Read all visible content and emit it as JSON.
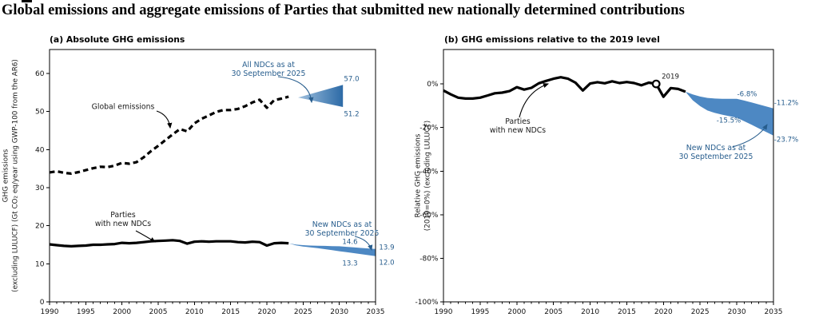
{
  "page": {
    "title": "Global emissions and aggregate emissions of Parties that submitted new nationally determined contributions"
  },
  "colors": {
    "line_black": "#000000",
    "band_blue": "#4d88c3",
    "wedge_gradient_start": "#9fc0de",
    "wedge_gradient_end": "#2c6aa6",
    "annotation_blue": "#275d8d",
    "marker_fill": "#ffffff"
  },
  "chart_data": [
    {
      "id": "a",
      "type": "line",
      "subtitle": "(a) Absolute GHG emissions",
      "ylabel": [
        "GHG emissions",
        "(excluding LULUCF) (Gt CO₂ eq/year using GWP-100 from the AR6)"
      ],
      "xlim": [
        1990,
        2035
      ],
      "ylim": [
        0,
        66.3
      ],
      "grid": false,
      "xticks": [
        1990,
        1995,
        2000,
        2005,
        2010,
        2015,
        2020,
        2025,
        2030,
        2035
      ],
      "xtick_labels": [
        "1990",
        "1995",
        "2000",
        "2005",
        "2010",
        "2015",
        "2020",
        "2025",
        "2030",
        "2035"
      ],
      "yticks": [
        0,
        10,
        20,
        30,
        40,
        50,
        60
      ],
      "ytick_labels": [
        "0",
        "10",
        "20",
        "30",
        "40",
        "50",
        "60"
      ],
      "series": [
        {
          "name": "Global emissions",
          "style": "dashed",
          "x": [
            1990,
            1991,
            1992,
            1993,
            1994,
            1995,
            1996,
            1997,
            1998,
            1999,
            2000,
            2001,
            2002,
            2003,
            2004,
            2005,
            2006,
            2007,
            2008,
            2009,
            2010,
            2011,
            2012,
            2013,
            2014,
            2015,
            2016,
            2017,
            2018,
            2019,
            2020,
            2021,
            2022,
            2023
          ],
          "y": [
            34.0,
            34.3,
            33.9,
            33.7,
            34.1,
            34.6,
            35.1,
            35.5,
            35.4,
            35.8,
            36.5,
            36.3,
            36.7,
            38.0,
            39.6,
            41.0,
            42.5,
            44.0,
            45.4,
            44.8,
            46.9,
            48.1,
            49.0,
            49.9,
            50.4,
            50.4,
            50.7,
            51.4,
            52.4,
            53.1,
            51.0,
            53.0,
            53.4,
            53.9
          ]
        },
        {
          "name": "Parties with new NDCs",
          "style": "solid",
          "x": [
            1990,
            1991,
            1992,
            1993,
            1994,
            1995,
            1996,
            1997,
            1998,
            1999,
            2000,
            2001,
            2002,
            2003,
            2004,
            2005,
            2006,
            2007,
            2008,
            2009,
            2010,
            2011,
            2012,
            2013,
            2014,
            2015,
            2016,
            2017,
            2018,
            2019,
            2020,
            2021,
            2022,
            2023
          ],
          "y": [
            15.1,
            14.9,
            14.7,
            14.6,
            14.7,
            14.8,
            15.0,
            15.0,
            15.1,
            15.2,
            15.5,
            15.4,
            15.5,
            15.7,
            15.9,
            16.0,
            16.1,
            16.2,
            16.0,
            15.3,
            15.8,
            15.9,
            15.8,
            15.9,
            15.9,
            15.9,
            15.7,
            15.6,
            15.8,
            15.7,
            14.8,
            15.4,
            15.5,
            15.4
          ]
        }
      ],
      "wedge": {
        "name": "All NDCs as at 30 September 2025",
        "x_tip": 2024.3,
        "y_tip": 53.7,
        "x_end": 2030.5,
        "top_end": 57.0,
        "bottom_end": 51.2
      },
      "band": {
        "name": "New NDCs as at 30 September 2025",
        "x": [
          2023,
          2024,
          2025,
          2026,
          2027,
          2028,
          2029,
          2030,
          2031,
          2032,
          2033,
          2034,
          2035
        ],
        "top": [
          15.4,
          15.05,
          14.9,
          14.8,
          14.75,
          14.7,
          14.65,
          14.6,
          14.45,
          14.3,
          14.17,
          14.03,
          13.9
        ],
        "bottom": [
          15.4,
          14.85,
          14.55,
          14.3,
          14.1,
          13.85,
          13.6,
          13.3,
          13.05,
          12.8,
          12.55,
          12.28,
          12.0
        ]
      },
      "labels": {
        "global": "Global emissions",
        "parties_l1": "Parties",
        "parties_l2": "with new NDCs",
        "allndcs_l1": "All NDCs as at",
        "allndcs_l2": "30 September 2025",
        "newndcs_l1": "New NDCs as at",
        "newndcs_l2": "30 September 2025",
        "wedge_top": "57.0",
        "wedge_bottom": "51.2",
        "band_top_2030": "14.6",
        "band_bottom_2030": "13.3",
        "band_top_2035": "13.9",
        "band_bottom_2035": "12.0"
      }
    },
    {
      "id": "b",
      "type": "line",
      "subtitle": "(b) GHG emissions relative to the 2019 level",
      "ylabel": [
        "Relative GHG emissions",
        "(2019=0%) (excluding LULUCF)"
      ],
      "xlim": [
        1990,
        2035
      ],
      "ylim": [
        -100,
        15.8
      ],
      "grid": false,
      "xticks": [
        1990,
        1995,
        2000,
        2005,
        2010,
        2015,
        2020,
        2025,
        2030,
        2035
      ],
      "xtick_labels": [
        "1990",
        "1995",
        "2000",
        "2005",
        "2010",
        "2015",
        "2020",
        "2025",
        "2030",
        "2035"
      ],
      "yticks": [
        0,
        -20,
        -40,
        -60,
        -80,
        -100
      ],
      "ytick_labels": [
        "0%",
        "-20%",
        "-40%",
        "-60%",
        "-80%",
        "-100%"
      ],
      "series": [
        {
          "name": "Parties with new NDCs",
          "style": "solid",
          "x": [
            1990,
            1991,
            1992,
            1993,
            1994,
            1995,
            1996,
            1997,
            1998,
            1999,
            2000,
            2001,
            2002,
            2003,
            2004,
            2005,
            2006,
            2007,
            2008,
            2009,
            2010,
            2011,
            2012,
            2013,
            2014,
            2015,
            2016,
            2017,
            2018,
            2019,
            2020,
            2021,
            2022,
            2023
          ],
          "y": [
            -3.0,
            -4.8,
            -6.3,
            -6.7,
            -6.7,
            -6.3,
            -5.3,
            -4.3,
            -4.0,
            -3.3,
            -1.5,
            -2.6,
            -1.8,
            0.3,
            1.4,
            2.4,
            3.1,
            2.4,
            0.6,
            -3.0,
            0.2,
            0.8,
            0.3,
            1.2,
            0.4,
            0.9,
            0.4,
            -0.6,
            0.6,
            0.0,
            -5.9,
            -1.9,
            -2.3,
            -3.6
          ]
        }
      ],
      "marker": {
        "x": 2019,
        "y": 0
      },
      "band": {
        "name": "New NDCs as at 30 September 2025",
        "x": [
          2023,
          2024,
          2025,
          2026,
          2027,
          2028,
          2029,
          2030,
          2031,
          2032,
          2033,
          2034,
          2035
        ],
        "top": [
          -3.6,
          -4.8,
          -5.8,
          -6.4,
          -6.7,
          -6.8,
          -6.8,
          -6.8,
          -7.6,
          -8.5,
          -9.4,
          -10.3,
          -11.2
        ],
        "bottom": [
          -3.6,
          -7.5,
          -10.2,
          -12.2,
          -13.3,
          -14.1,
          -14.8,
          -15.5,
          -17.1,
          -18.7,
          -20.4,
          -22.0,
          -23.7
        ]
      },
      "labels": {
        "parties_l1": "Parties",
        "parties_l2": "with new NDCs",
        "marker": "2019",
        "newndcs_l1": "New NDCs as at",
        "newndcs_l2": "30 September 2025",
        "band_top_2030": "-6.8%",
        "band_bottom_2030": "-15.5%",
        "band_top_2035": "-11.2%",
        "band_bottom_2035": "-23.7%"
      }
    }
  ]
}
